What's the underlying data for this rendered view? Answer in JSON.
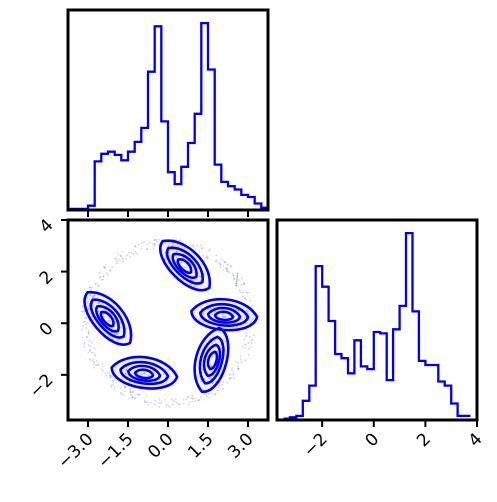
{
  "chart_data": {
    "type": "corner",
    "color": "#0000ee",
    "panels": [
      {
        "id": "hist-x",
        "type": "histogram",
        "xlim": [
          -3.75,
          3.75
        ],
        "bin_edges": [
          -3.75,
          -3.5,
          -3.25,
          -3.0,
          -2.75,
          -2.5,
          -2.25,
          -2.0,
          -1.75,
          -1.5,
          -1.25,
          -1.0,
          -0.75,
          -0.5,
          -0.25,
          0.0,
          0.25,
          0.5,
          0.75,
          1.0,
          1.25,
          1.5,
          1.75,
          2.0,
          2.25,
          2.5,
          2.75,
          3.0,
          3.25,
          3.5,
          3.75
        ],
        "counts": [
          1,
          1,
          1,
          4,
          45,
          52,
          54,
          51,
          46,
          54,
          63,
          76,
          128,
          170,
          82,
          35,
          24,
          40,
          62,
          89,
          173,
          130,
          42,
          26,
          22,
          19,
          14,
          12,
          6,
          2
        ]
      },
      {
        "id": "scatter-xy",
        "type": "scatter+contour",
        "xlim": [
          -3.75,
          3.75
        ],
        "ylim": [
          -3.75,
          4.0
        ],
        "x_ticks": [
          -3.0,
          -1.5,
          0.0,
          1.5,
          3.0
        ],
        "x_tick_labels": [
          "−3.0",
          "−1.5",
          "0.0",
          "1.5",
          "3.0"
        ],
        "y_ticks": [
          -2,
          0,
          2,
          4
        ],
        "y_tick_labels": [
          "−2",
          "0",
          "2",
          "4"
        ],
        "blobs": [
          {
            "x": 0.6,
            "y": 2.2,
            "angle_deg": -45
          },
          {
            "x": 2.1,
            "y": 0.25,
            "angle_deg": -5
          },
          {
            "x": 1.7,
            "y": -1.45,
            "angle_deg": 75
          },
          {
            "x": -0.9,
            "y": -2.0,
            "angle_deg": -8
          },
          {
            "x": -2.3,
            "y": 0.15,
            "angle_deg": -50
          }
        ],
        "ring_radius": 3.1
      },
      {
        "id": "hist-y",
        "type": "histogram",
        "xlim": [
          -3.75,
          4.0
        ],
        "x_ticks": [
          -2,
          0,
          2,
          4
        ],
        "x_tick_labels": [
          "−2",
          "0",
          "2",
          "4"
        ],
        "bin_edges": [
          -3.5,
          -3.25,
          -3.0,
          -2.75,
          -2.5,
          -2.25,
          -2.0,
          -1.75,
          -1.5,
          -1.25,
          -1.0,
          -0.75,
          -0.5,
          -0.25,
          0.0,
          0.25,
          0.5,
          0.75,
          1.0,
          1.25,
          1.5,
          1.75,
          2.0,
          2.25,
          2.5,
          2.75,
          3.0,
          3.25,
          3.5,
          3.75
        ],
        "counts": [
          1,
          2,
          3,
          14,
          25,
          112,
          97,
          72,
          48,
          45,
          34,
          58,
          39,
          37,
          64,
          63,
          29,
          66,
          83,
          136,
          79,
          43,
          40,
          40,
          28,
          25,
          12,
          3,
          3
        ]
      }
    ]
  }
}
